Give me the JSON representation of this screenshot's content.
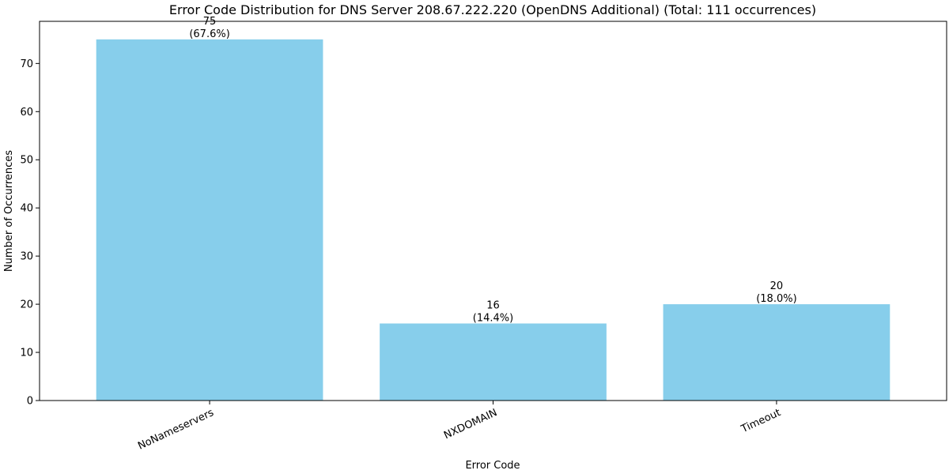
{
  "chart_data": {
    "type": "bar",
    "title": "Error Code Distribution for DNS Server 208.67.222.220 (OpenDNS Additional) (Total: 111 occurrences)",
    "xlabel": "Error Code",
    "ylabel": "Number of Occurrences",
    "categories": [
      "NoNameservers",
      "NXDOMAIN",
      "Timeout"
    ],
    "values": [
      75,
      16,
      20
    ],
    "value_labels": [
      "75",
      "16",
      "20"
    ],
    "percent_labels": [
      "(67.6%)",
      "(14.4%)",
      "(18.0%)"
    ],
    "ylim": [
      0,
      78.75
    ],
    "yticks": [
      0,
      10,
      20,
      30,
      40,
      50,
      60,
      70
    ],
    "bar_color": "#87CEEB",
    "grid": false,
    "legend": "none"
  }
}
